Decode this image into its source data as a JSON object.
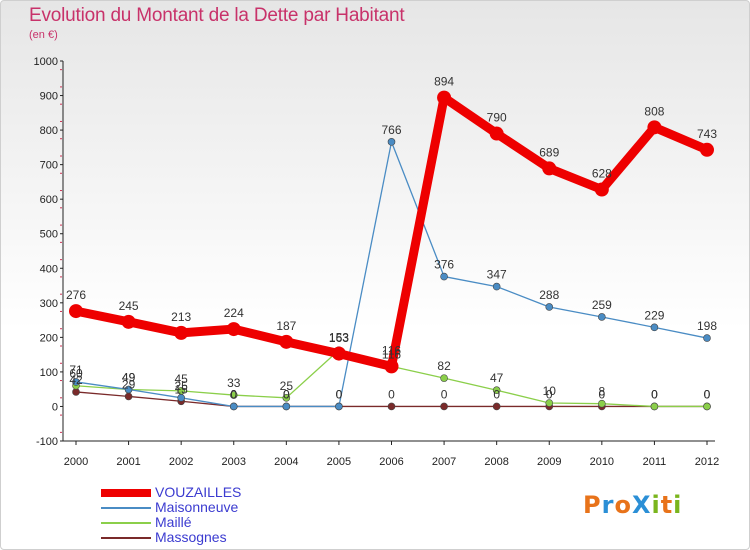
{
  "title": "Evolution du Montant de la Dette par Habitant",
  "unit_label": "(en €)",
  "logo": {
    "text": "ProXiti",
    "letters": [
      "P",
      "r",
      "o",
      "X",
      "i",
      "t",
      "i"
    ],
    "colors": [
      "#e8731a",
      "#2b8fd6",
      "#e8731a",
      "#2b8fd6",
      "#7ab51d",
      "#e8731a",
      "#7ab51d"
    ]
  },
  "chart_data": {
    "type": "line",
    "title": "Evolution du Montant de la Dette par Habitant",
    "ylabel": "(en €)",
    "xlabel": "",
    "x": [
      "2000",
      "2001",
      "2002",
      "2003",
      "2004",
      "2005",
      "2006",
      "2007",
      "2008",
      "2009",
      "2010",
      "2011",
      "2012"
    ],
    "ylim": [
      -100,
      1000
    ],
    "yticks": [
      -100,
      0,
      100,
      200,
      300,
      400,
      500,
      600,
      700,
      800,
      900,
      1000
    ],
    "grid": false,
    "legend_position": "bottom-left",
    "series": [
      {
        "name": "VOUZAILLES",
        "color": "#ee0000",
        "values": [
          276,
          245,
          213,
          224,
          187,
          153,
          116,
          894,
          790,
          689,
          628,
          808,
          743
        ],
        "labels": [
          "276",
          "245",
          "213",
          "224",
          "187",
          "153",
          "116",
          "894",
          "790",
          "689",
          "628",
          "808",
          "743"
        ]
      },
      {
        "name": "Maisonneuve",
        "color": "#4a8cc4",
        "values": [
          71,
          49,
          25,
          0,
          0,
          0,
          766,
          376,
          347,
          288,
          259,
          229,
          198
        ],
        "labels": [
          "71",
          "49",
          "25",
          "0",
          "0",
          "0",
          "766",
          "376",
          "347",
          "288",
          "259",
          "229",
          "198"
        ]
      },
      {
        "name": "Maillé",
        "color": "#8bcf4a",
        "values": [
          60,
          49,
          45,
          33,
          25,
          163,
          116,
          82,
          47,
          10,
          8,
          0,
          0
        ],
        "labels": [
          "60",
          "49",
          "45",
          "33",
          "25",
          "163",
          "116",
          "82",
          "47",
          "10",
          "8",
          "0",
          "0"
        ]
      },
      {
        "name": "Massognes",
        "color": "#7a2a2a",
        "values": [
          42,
          29,
          15,
          0,
          0,
          0,
          0,
          0,
          0,
          0,
          0,
          0,
          0
        ],
        "labels": [
          "42",
          "29",
          "15",
          "0",
          "0",
          "0",
          "0",
          "0",
          "0",
          "0",
          "0",
          "0",
          "0"
        ]
      }
    ]
  }
}
